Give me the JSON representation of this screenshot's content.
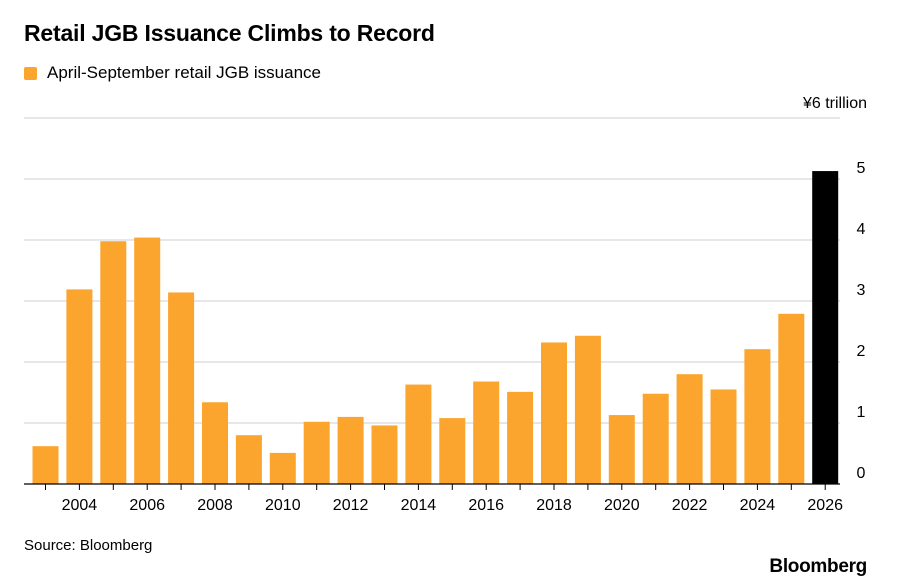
{
  "chart_data": {
    "type": "bar",
    "title": "Retail JGB Issuance Climbs to Record",
    "legend": [
      {
        "label": "April-September retail JGB issuance",
        "color": "#FBA42E"
      }
    ],
    "unit_label": "¥6 trillion",
    "source": "Source: Bloomberg",
    "brand": "Bloomberg",
    "highlight_color": "#000000",
    "bar_color": "#FBA42E",
    "ylim": [
      0,
      6
    ],
    "y_ticks": [
      0,
      1,
      2,
      3,
      4,
      5
    ],
    "y_axis_position": "right",
    "grid": true,
    "x": [
      2003,
      2004,
      2005,
      2006,
      2007,
      2008,
      2009,
      2010,
      2011,
      2012,
      2013,
      2014,
      2015,
      2016,
      2017,
      2018,
      2019,
      2020,
      2021,
      2022,
      2023,
      2024,
      2025,
      2026
    ],
    "x_tick_labels": [
      "2004",
      "2006",
      "2008",
      "2010",
      "2012",
      "2014",
      "2016",
      "2018",
      "2020",
      "2022",
      "2024",
      "2026"
    ],
    "values": [
      0.62,
      3.19,
      3.98,
      4.04,
      3.14,
      1.34,
      0.8,
      0.51,
      1.02,
      1.1,
      0.96,
      1.63,
      1.08,
      1.68,
      1.51,
      2.32,
      2.43,
      1.13,
      1.48,
      1.8,
      1.55,
      2.21,
      2.79,
      5.13
    ],
    "highlight_index": 23
  }
}
